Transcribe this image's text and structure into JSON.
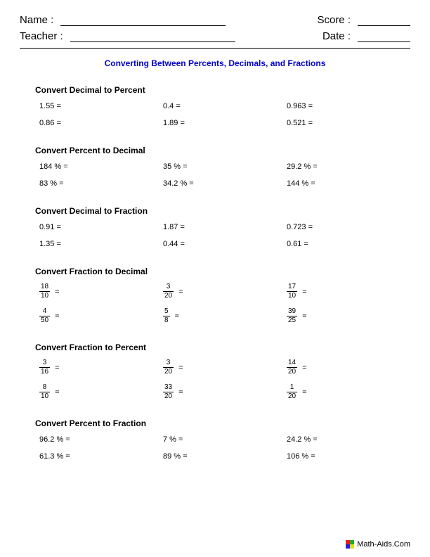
{
  "header": {
    "name_label": "Name :",
    "teacher_label": "Teacher :",
    "score_label": "Score :",
    "date_label": "Date :"
  },
  "title": "Converting Between Percents, Decimals, and Fractions",
  "sections": [
    {
      "heading": "Convert Decimal to Percent",
      "type": "plain",
      "problems": [
        {
          "v": "1.55"
        },
        {
          "v": "0.4"
        },
        {
          "v": "0.963"
        },
        {
          "v": "0.86"
        },
        {
          "v": "1.89"
        },
        {
          "v": "0.521"
        }
      ]
    },
    {
      "heading": "Convert Percent to Decimal",
      "type": "percent",
      "problems": [
        {
          "v": "184"
        },
        {
          "v": "35"
        },
        {
          "v": "29.2"
        },
        {
          "v": "83"
        },
        {
          "v": "34.2"
        },
        {
          "v": "144"
        }
      ]
    },
    {
      "heading": "Convert Decimal to Fraction",
      "type": "plain",
      "problems": [
        {
          "v": "0.91"
        },
        {
          "v": "1.87"
        },
        {
          "v": "0.723"
        },
        {
          "v": "1.35"
        },
        {
          "v": "0.44"
        },
        {
          "v": "0.61"
        }
      ]
    },
    {
      "heading": "Convert Fraction to Decimal",
      "type": "fraction",
      "problems": [
        {
          "n": "18",
          "d": "10"
        },
        {
          "n": "3",
          "d": "20"
        },
        {
          "n": "17",
          "d": "10"
        },
        {
          "n": "4",
          "d": "50"
        },
        {
          "n": "5",
          "d": "8"
        },
        {
          "n": "39",
          "d": "25"
        }
      ]
    },
    {
      "heading": "Convert Fraction to Percent",
      "type": "fraction",
      "problems": [
        {
          "n": "3",
          "d": "16"
        },
        {
          "n": "3",
          "d": "20"
        },
        {
          "n": "14",
          "d": "20"
        },
        {
          "n": "8",
          "d": "10"
        },
        {
          "n": "33",
          "d": "20"
        },
        {
          "n": "1",
          "d": "20"
        }
      ]
    },
    {
      "heading": "Convert Percent to Fraction",
      "type": "percent",
      "problems": [
        {
          "v": "96.2"
        },
        {
          "v": "7"
        },
        {
          "v": "24.2"
        },
        {
          "v": "61.3"
        },
        {
          "v": "89"
        },
        {
          "v": "106"
        }
      ]
    }
  ],
  "footer": {
    "site": "Math-Aids.Com"
  },
  "style": {
    "title_color": "#0000cc",
    "line_widths": {
      "name": 235,
      "teacher": 235,
      "score": 75,
      "date": 75
    }
  }
}
